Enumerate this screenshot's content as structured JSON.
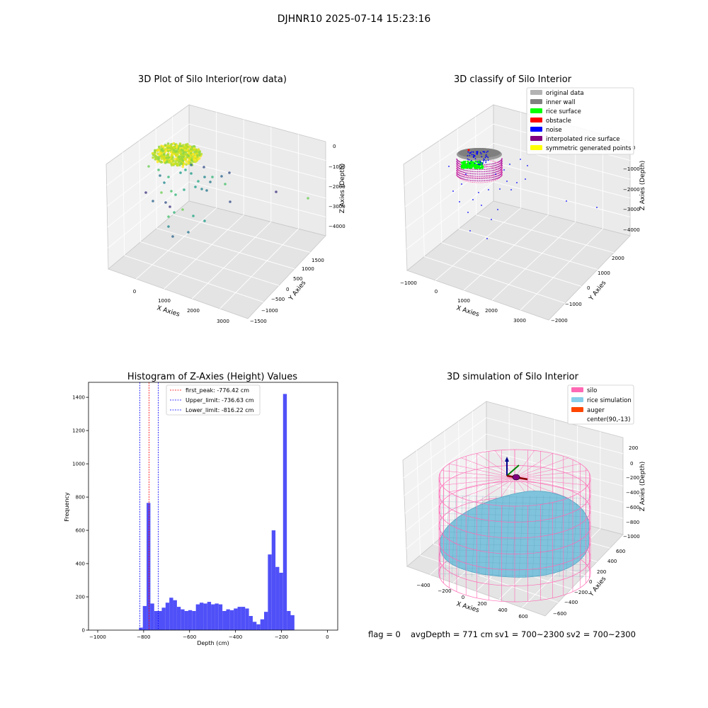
{
  "suptitle": "DJHNR10 2025-07-14 15:23:16",
  "status_line": {
    "flag": "flag = 0",
    "avg_depth": "avgDepth = 771 cm",
    "sv1": "sv1 = 700~2300",
    "sv2": "sv2 = 700~2300"
  },
  "chart_data": [
    {
      "type": "scatter3d",
      "title": "3D Plot of Silo Interior(row data)",
      "xlabel": "X Axies",
      "ylabel": "Y Axies",
      "zlabel": "Z Axies (Depth)",
      "x_ticks": [
        "0",
        "1000",
        "2000",
        "3000"
      ],
      "y_ticks": [
        "1500",
        "1000",
        "500",
        "0",
        "−500",
        "−1000",
        "−1500"
      ],
      "z_ticks": [
        "0",
        "−1000",
        "−2000",
        "−3000",
        "−4000"
      ],
      "colormap": "viridis",
      "grid": true
    },
    {
      "type": "scatter3d",
      "title": "3D classify of Silo Interior",
      "xlabel": "X Axies",
      "ylabel": "Y Axies",
      "zlabel": "Z Axies (Depth)",
      "x_ticks": [
        "−1000",
        "0",
        "1000",
        "2000",
        "3000"
      ],
      "y_ticks": [
        "2000",
        "1000",
        "0",
        "−1000",
        "−2000"
      ],
      "z_ticks": [
        "0",
        "−1000",
        "−2000",
        "−3000",
        "−4000"
      ],
      "legend_position": "top-right",
      "grid": true,
      "legend": [
        {
          "name": "original data",
          "color": "#b3b3b3"
        },
        {
          "name": "inner wall",
          "color": "#808080"
        },
        {
          "name": "rice surface",
          "color": "#00ff00"
        },
        {
          "name": "obstacle",
          "color": "#ff0000"
        },
        {
          "name": "noise",
          "color": "#0000ff"
        },
        {
          "name": "interpolated rice surface",
          "color": "#800080"
        },
        {
          "name": "symmetric generated points",
          "color": "#ffff00"
        }
      ]
    },
    {
      "type": "bar",
      "title": "Histogram of Z-Axies (Height) Values",
      "xlabel": "Depth (cm)",
      "ylabel": "Frequency",
      "xlim": [
        -1040,
        45
      ],
      "ylim": [
        0,
        1490
      ],
      "x_ticks": [
        -1000,
        -800,
        -600,
        -400,
        -200,
        0
      ],
      "y_ticks": [
        0,
        200,
        400,
        600,
        800,
        1000,
        1200,
        1400
      ],
      "x_tick_labels": [
        "−1000",
        "−800",
        "−600",
        "−400",
        "−200",
        "0"
      ],
      "y_tick_labels": [
        "0",
        "200",
        "400",
        "600",
        "800",
        "1000",
        "1200",
        "1400"
      ],
      "bar_color": "#5050f8",
      "grid": false,
      "legend_position": "top-center",
      "bin_start": -820,
      "bin_width": 16.5,
      "values": [
        15,
        145,
        765,
        160,
        115,
        115,
        135,
        165,
        195,
        180,
        140,
        125,
        115,
        120,
        115,
        155,
        165,
        160,
        170,
        155,
        160,
        155,
        115,
        125,
        120,
        130,
        140,
        140,
        130,
        85,
        50,
        35,
        65,
        110,
        455,
        600,
        380,
        345,
        1420,
        115,
        90
      ],
      "vlines": [
        {
          "label": "first_peak: -776.42 cm",
          "x": -776.42,
          "color": "#ff0000"
        },
        {
          "label": "Upper_limit: -736.63 cm",
          "x": -736.63,
          "color": "#0000ff"
        },
        {
          "label": "Lower_limit: -816.22 cm",
          "x": -816.22,
          "color": "#0000ff"
        }
      ]
    },
    {
      "type": "surface3d",
      "title": "3D simulation of Silo Interior",
      "xlabel": "X Axies",
      "ylabel": "Y Axies",
      "zlabel": "Z Axies (Depth)",
      "x_ticks": [
        "−400",
        "−200",
        "0",
        "200",
        "400",
        "600"
      ],
      "y_ticks": [
        "600",
        "400",
        "200",
        "0",
        "−200",
        "−400",
        "−600"
      ],
      "z_ticks": [
        "200",
        "0",
        "−200",
        "−400",
        "−600",
        "−800",
        "−1000"
      ],
      "legend_position": "top-right",
      "grid": true,
      "legend": [
        {
          "name": "silo",
          "color": "#ff69b4"
        },
        {
          "name": "rice simulation",
          "color": "#87ceeb"
        },
        {
          "name": "auger",
          "color": "#ff4500"
        },
        {
          "name": "center(90,-13)",
          "color": ""
        }
      ]
    }
  ]
}
